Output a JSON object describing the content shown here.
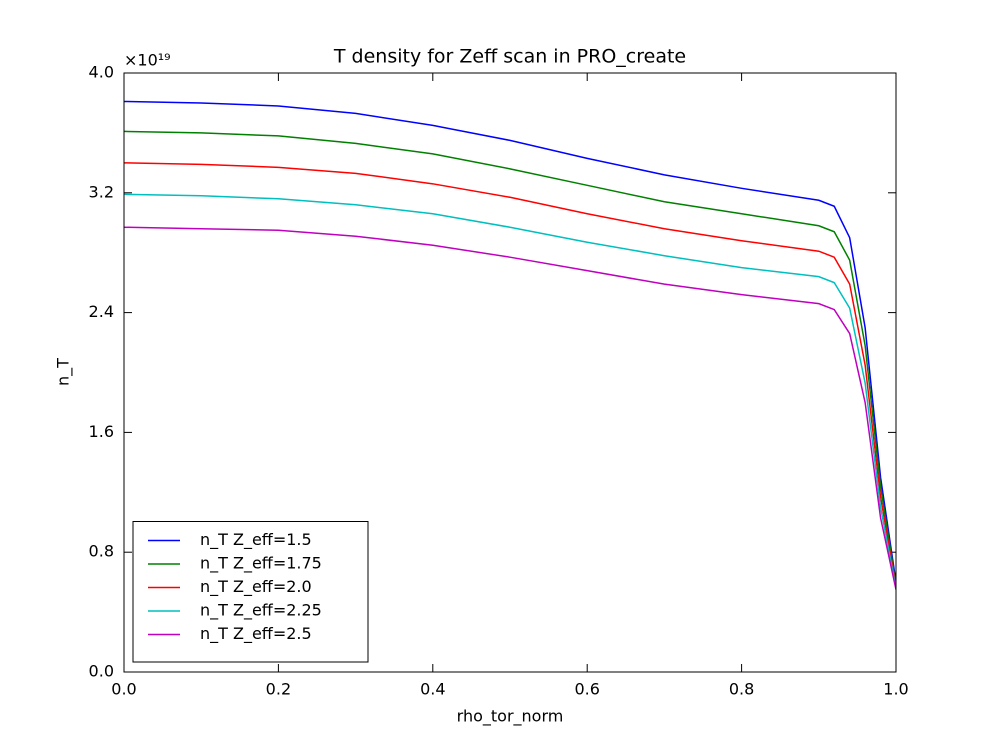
{
  "chart_data": {
    "type": "line",
    "title": "T density for Zeff scan in PRO_create",
    "xlabel": "rho_tor_norm",
    "ylabel": "n_T",
    "y_offset_label": "×10¹⁹",
    "x": [
      0,
      0.1,
      0.2,
      0.3,
      0.4,
      0.5,
      0.6,
      0.7,
      0.8,
      0.9,
      0.92,
      0.94,
      0.96,
      0.98,
      1.0
    ],
    "series": [
      {
        "name": "n_T Z_eff=1.5",
        "color": "#0000ff",
        "values": [
          3.81,
          3.8,
          3.78,
          3.73,
          3.65,
          3.55,
          3.43,
          3.32,
          3.23,
          3.15,
          3.11,
          2.9,
          2.3,
          1.3,
          0.6
        ]
      },
      {
        "name": "n_T Z_eff=1.75",
        "color": "#008000",
        "values": [
          3.61,
          3.6,
          3.58,
          3.53,
          3.46,
          3.36,
          3.25,
          3.14,
          3.06,
          2.98,
          2.94,
          2.75,
          2.18,
          1.24,
          0.58
        ]
      },
      {
        "name": "n_T Z_eff=2.0",
        "color": "#ff0000",
        "values": [
          3.4,
          3.39,
          3.37,
          3.33,
          3.26,
          3.17,
          3.06,
          2.96,
          2.88,
          2.81,
          2.77,
          2.59,
          2.05,
          1.17,
          0.57
        ]
      },
      {
        "name": "n_T Z_eff=2.25",
        "color": "#00bfbf",
        "values": [
          3.19,
          3.18,
          3.16,
          3.12,
          3.06,
          2.97,
          2.87,
          2.78,
          2.7,
          2.64,
          2.6,
          2.43,
          1.93,
          1.1,
          0.56
        ]
      },
      {
        "name": "n_T Z_eff=2.5",
        "color": "#bf00bf",
        "values": [
          2.97,
          2.96,
          2.95,
          2.91,
          2.85,
          2.77,
          2.68,
          2.59,
          2.52,
          2.46,
          2.42,
          2.26,
          1.8,
          1.03,
          0.55
        ]
      }
    ],
    "xlim": [
      0,
      1.0
    ],
    "ylim": [
      0,
      4.0
    ],
    "xticks": [
      {
        "value": 0,
        "label": "0.0"
      },
      0.2,
      0.4,
      0.6,
      0.8,
      {
        "value": 1.0,
        "label": "1.0"
      }
    ],
    "yticks": [
      {
        "value": 0,
        "label": "0.0"
      },
      0.8,
      1.6,
      2.4,
      3.2,
      {
        "value": 4.0,
        "label": "4.0"
      }
    ],
    "grid": false,
    "legend": "lower left"
  }
}
